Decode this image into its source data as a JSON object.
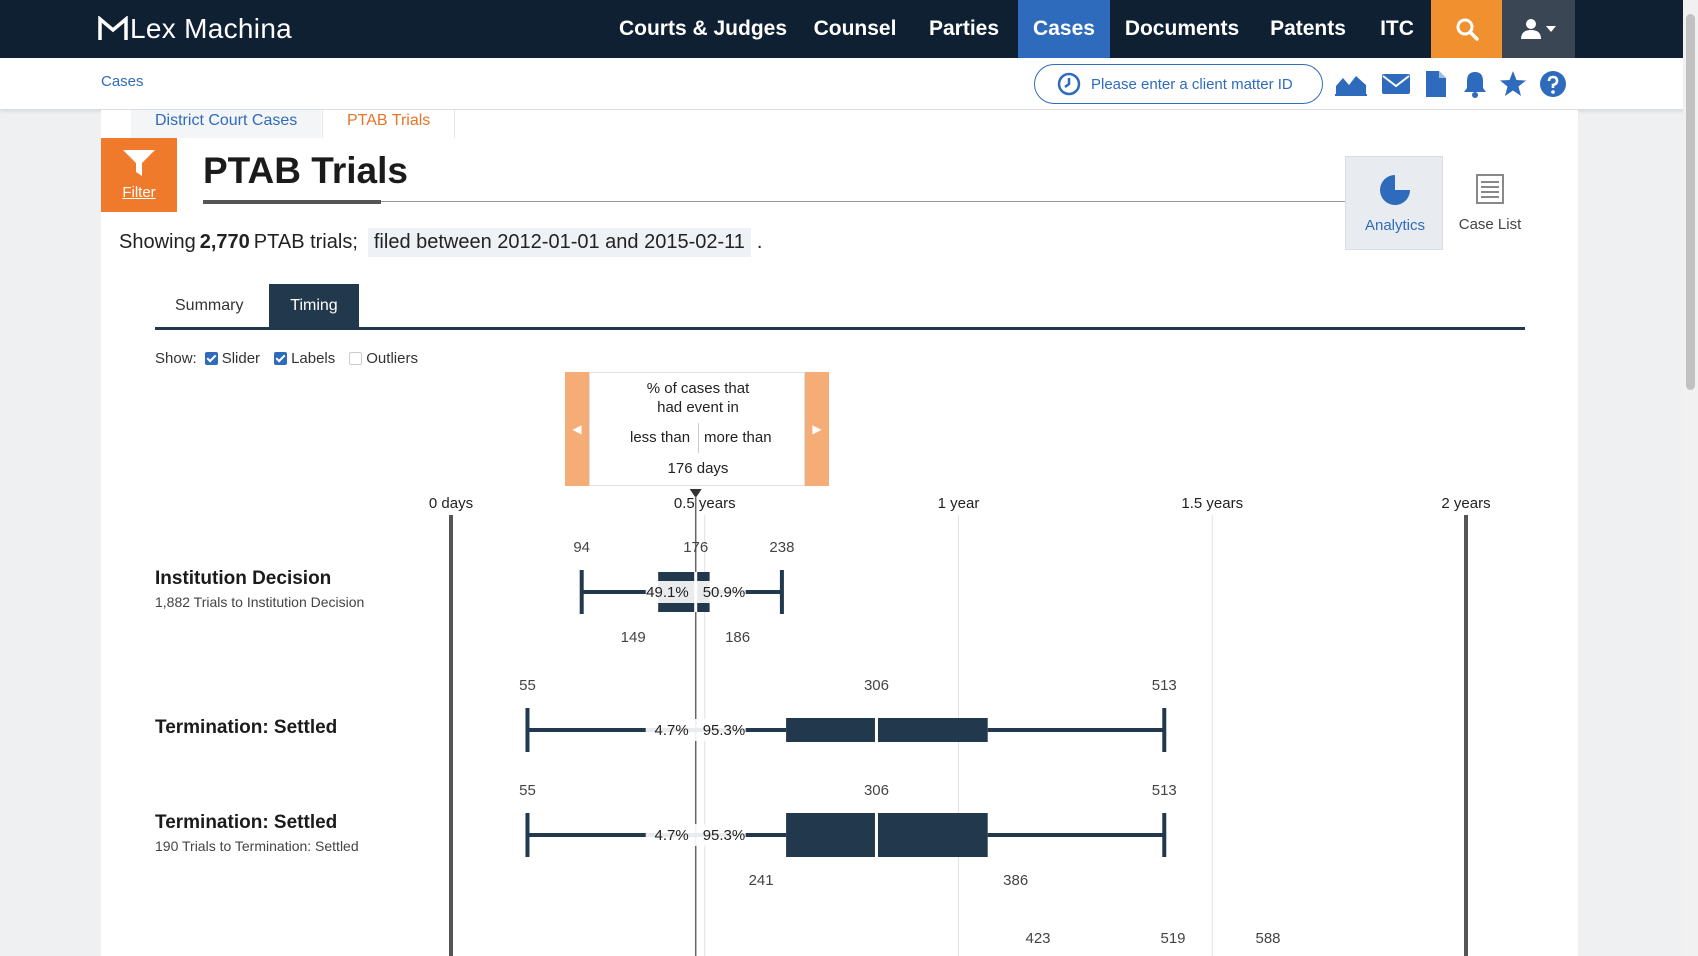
{
  "app": {
    "name": "Lex Machina"
  },
  "nav": {
    "items": [
      "Courts & Judges",
      "Counsel",
      "Parties",
      "Cases",
      "Documents",
      "Patents",
      "ITC"
    ],
    "active": "Cases"
  },
  "breadcrumb": "Cases",
  "client_matter": {
    "label": "Please enter a client matter ID"
  },
  "case_tabs": {
    "district": "District Court Cases",
    "ptab": "PTAB Trials"
  },
  "filter_label": "Filter",
  "page": {
    "title": "PTAB Trials"
  },
  "showing": {
    "prefix": "Showing",
    "count": "2,770",
    "suffix": "PTAB trials;",
    "filter": "filed between 2012-01-01 and 2015-02-11",
    "end": "."
  },
  "views": {
    "analytics": "Analytics",
    "case_list": "Case List"
  },
  "subtabs": {
    "summary": "Summary",
    "timing": "Timing"
  },
  "show_options": {
    "label": "Show:",
    "slider": "Slider",
    "labels": "Labels",
    "outliers": "Outliers"
  },
  "slider": {
    "line1": "% of cases that",
    "line2": "had event in",
    "less": "less than",
    "more": "more than",
    "days": "176 days",
    "value_days": 176
  },
  "colors": {
    "nav_bg": "#0f2033",
    "accent_blue": "#2f6bbd",
    "accent_orange": "#ef7a2c",
    "box": "#22384c"
  },
  "chart_data": {
    "type": "boxplot",
    "axis_ticks": [
      {
        "label": "0 days",
        "days": 0
      },
      {
        "label": "0.5 years",
        "days": 182.5
      },
      {
        "label": "1 year",
        "days": 365
      },
      {
        "label": "1.5 years",
        "days": 547.5
      },
      {
        "label": "2 years",
        "days": 730
      }
    ],
    "rows": [
      {
        "title": "Institution Decision",
        "subtitle": "1,882 Trials to Institution Decision",
        "min": 94,
        "q1": 149,
        "median": 176,
        "q3": 186,
        "max": 238,
        "top_labels": [
          "94",
          "176",
          "238"
        ],
        "bottom_labels": [
          "149",
          "186"
        ],
        "pct_less": "49.1%",
        "pct_more": "50.9%"
      },
      {
        "title": "Termination: Settled",
        "subtitle": "",
        "min": 55,
        "q1": 241,
        "median": 306,
        "q3": 386,
        "max": 513,
        "top_labels": [
          "55",
          "306",
          "513"
        ],
        "bottom_labels": [],
        "pct_less": "4.7%",
        "pct_more": "95.3%"
      },
      {
        "title": "Termination: Settled",
        "subtitle": "190 Trials to Termination: Settled",
        "min": 55,
        "q1": 241,
        "median": 306,
        "q3": 386,
        "max": 513,
        "top_labels": [
          "55",
          "306",
          "513"
        ],
        "bottom_labels": [
          "241",
          "386"
        ],
        "pct_less": "4.7%",
        "pct_more": "95.3%"
      }
    ],
    "partial_labels": [
      "423",
      "519",
      "588"
    ]
  }
}
